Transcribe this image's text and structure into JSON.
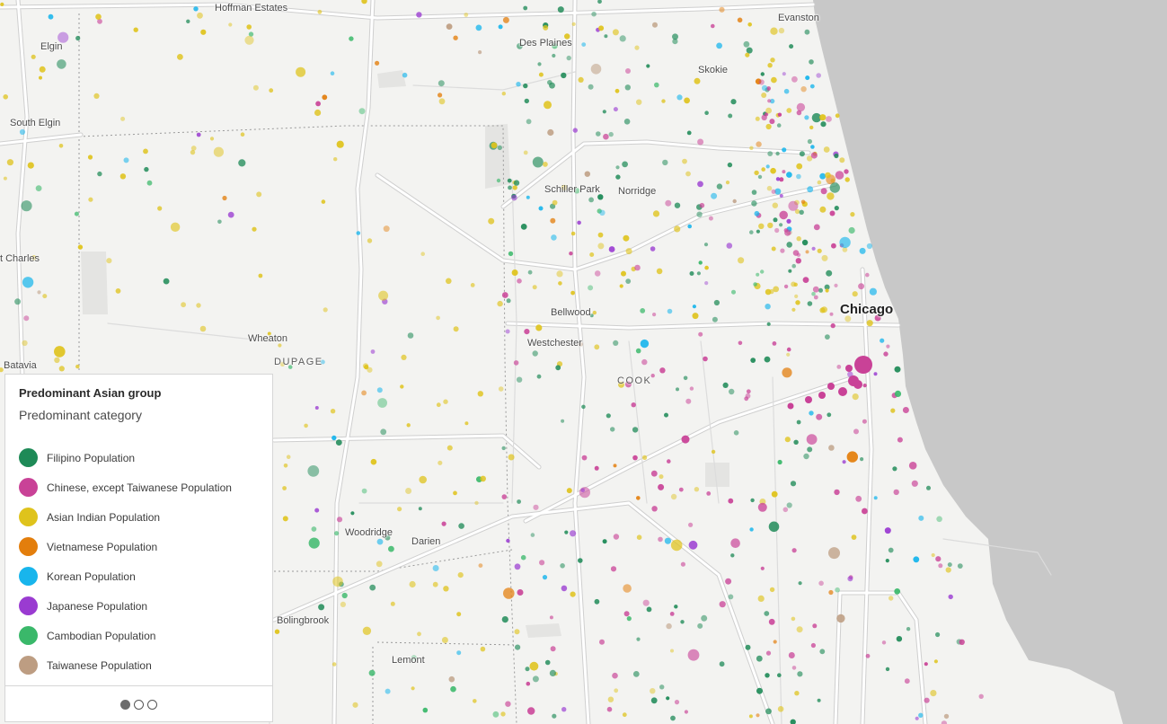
{
  "map": {
    "place_labels": {
      "hoffman_estates": "Hoffman Estates",
      "evanston": "Evanston",
      "elgin": "Elgin",
      "des_plaines": "Des Plaines",
      "skokie": "Skokie",
      "south_elgin": "South Elgin",
      "schiller_park": "Schiller Park",
      "norridge": "Norridge",
      "st_charles": "t Charles",
      "bellwood": "Bellwood",
      "chicago": "Chicago",
      "westchester": "Westchester",
      "wheaton": "Wheaton",
      "batavia": "Batavia",
      "woodridge": "Woodridge",
      "darien": "Darien",
      "bolingbrook": "Bolingbrook",
      "lemont": "Lemont"
    },
    "county_labels": {
      "dupage": "DUPAGE",
      "cook": "COOK"
    },
    "colors": {
      "lake": "#c8c8c8",
      "land": "#f3f3f1",
      "roads": "#ffffff",
      "road_casing": "#c9c9c9"
    }
  },
  "legend": {
    "title": "Predominant Asian group",
    "subtitle": "Predominant category",
    "items": [
      {
        "label": "Filipino Population",
        "color": "#1e8a57"
      },
      {
        "label": "Chinese, except Taiwanese Population",
        "color": "#c94297"
      },
      {
        "label": "Asian Indian Population",
        "color": "#dfc31c"
      },
      {
        "label": "Vietnamese Population",
        "color": "#e37e0c"
      },
      {
        "label": "Korean Population",
        "color": "#18b5ec"
      },
      {
        "label": "Japanese Population",
        "color": "#9a3bd1"
      },
      {
        "label": "Cambodian Population",
        "color": "#3ab86a"
      },
      {
        "label": "Taiwanese Population",
        "color": "#bd9d82"
      }
    ],
    "pager": {
      "pages": 3,
      "current": 1
    }
  }
}
